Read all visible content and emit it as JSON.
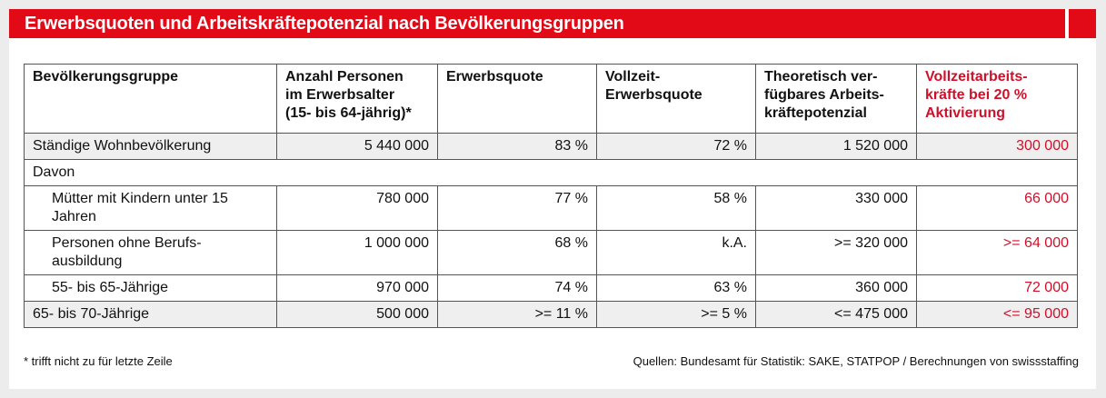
{
  "title": "Erwerbsquoten und Arbeitskräftepotenzial nach Bevölkerungsgruppen",
  "colors": {
    "accent": "#e20a17",
    "highlight_text": "#d0102a",
    "shaded_row": "#efefef"
  },
  "table": {
    "headers": [
      "Bevölkerungsgruppe",
      "Anzahl Personen im Erwerbsalter (15- bis 64-jährig)*",
      "Erwerbsquote",
      "Vollzeit-Erwerbsquote",
      "Theoretisch verfügbares Arbeitskräftepotenzial",
      "Vollzeitarbeitskräfte bei 20 % Aktivierung"
    ],
    "header_lines": [
      [
        "Bevölkerungsgruppe"
      ],
      [
        "Anzahl Personen",
        "im Erwerbsalter",
        "(15- bis 64-jährig)*"
      ],
      [
        "Erwerbsquote"
      ],
      [
        "Vollzeit-",
        "Erwerbsquote"
      ],
      [
        "Theoretisch ver-",
        "fügbares Arbeits-",
        "kräftepotenzial"
      ],
      [
        "Vollzeitarbeits-",
        "kräfte bei 20 %",
        "Aktivierung"
      ]
    ],
    "rows": [
      {
        "cells": [
          "Ständige Wohnbevölkerung",
          "5 440 000",
          "83 %",
          "72 %",
          "1 520 000",
          "300 000"
        ],
        "shaded": true,
        "indent": false
      },
      {
        "cells": [
          "Davon"
        ],
        "section": true
      },
      {
        "cells": [
          "Mütter mit Kindern unter 15 Jahren",
          "780 000",
          "77 %",
          "58 %",
          "330 000",
          "66 000"
        ],
        "shaded": false,
        "indent": true
      },
      {
        "cells": [
          "Personen ohne Berufs-ausbildung",
          "1 000 000",
          "68 %",
          "k.A.",
          ">= 320 000",
          ">= 64 000"
        ],
        "shaded": false,
        "indent": true
      },
      {
        "cells": [
          "55- bis 65-Jährige",
          "970 000",
          "74 %",
          "63 %",
          "360 000",
          "72 000"
        ],
        "shaded": false,
        "indent": true
      },
      {
        "cells": [
          "65- bis 70-Jährige",
          "500 000",
          ">= 11 %",
          ">= 5 %",
          "<= 475 000",
          "<= 95 000"
        ],
        "shaded": true,
        "indent": false
      }
    ]
  },
  "footnote": "* trifft nicht zu für letzte Zeile",
  "source": "Quellen: Bundesamt für Statistik: SAKE, STATPOP / Berechnungen von swissstaffing"
}
